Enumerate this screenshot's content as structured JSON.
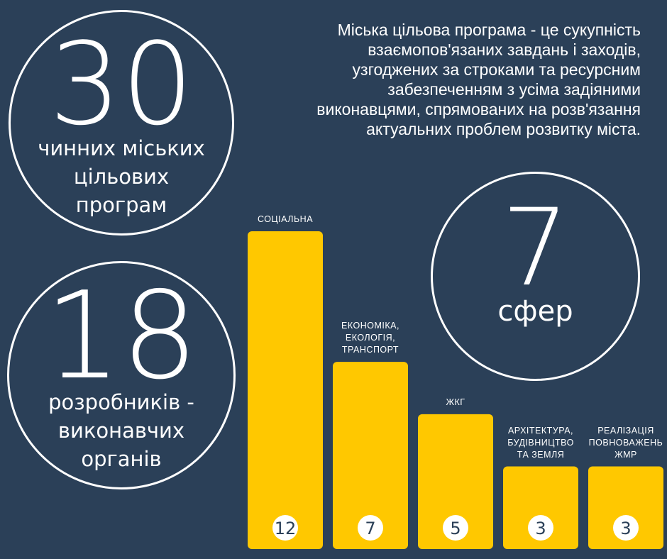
{
  "description": "Міська цільова програма -  це сукупність\nвзаємопов'язаних завдань і заходів,\nузгоджених за строками та ресурсним\nзабезпеченням з усіма задіяними\nвиконавцями, спрямованих на розв'язання\nактуальних проблем розвитку міста.",
  "stats": {
    "programs": {
      "number": "30",
      "label": "чинних міських\nцільових\nпрограм"
    },
    "developers": {
      "number": "18",
      "label": "розробників -\nвиконавчих\nорганів"
    },
    "spheres": {
      "number": "7",
      "label": "сфер"
    }
  },
  "colors": {
    "background": "#2b4058",
    "bar": "#ffc800",
    "text": "#ffffff",
    "value_text": "#2b4058"
  },
  "chart_data": {
    "type": "bar",
    "categories": [
      "СОЦІАЛЬНА",
      "ЕКОНОМІКА,\nЕКОЛОГІЯ,\nТРАНСПОРТ",
      "ЖКГ",
      "АРХІТЕКТУРА,\nБУДІВНИЦТВО\nТА ЗЕМЛЯ",
      "РЕАЛІЗАЦІЯ\nПОВНОВАЖЕНЬ\nЖМР"
    ],
    "values": [
      12,
      7,
      5,
      3,
      3
    ],
    "ylim": [
      0,
      12
    ]
  }
}
